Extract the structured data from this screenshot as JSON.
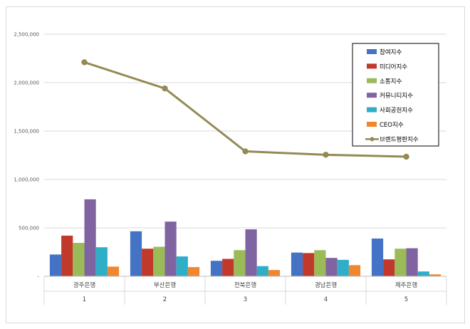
{
  "chart_data": {
    "type": "bar",
    "y_ticks": [
      "2,500,000",
      "2,000,000",
      "1,500,000",
      "1,000,000",
      "500,000",
      "-"
    ],
    "ylim": [
      0,
      2500000
    ],
    "grid": true,
    "legend_position": "top-right",
    "categories": [
      "광주은행",
      "부산은행",
      "전북은행",
      "경남은행",
      "제주은행"
    ],
    "category_index": [
      "1",
      "2",
      "3",
      "4",
      "5"
    ],
    "series": [
      {
        "name": "참여지수",
        "color": "#4472c4",
        "values": [
          225000,
          465000,
          160000,
          245000,
          390000
        ]
      },
      {
        "name": "미디어지수",
        "color": "#c0392b",
        "values": [
          420000,
          285000,
          180000,
          240000,
          175000
        ]
      },
      {
        "name": "소통지수",
        "color": "#9bbb59",
        "values": [
          345000,
          305000,
          270000,
          270000,
          285000
        ]
      },
      {
        "name": "커뮤니티지수",
        "color": "#8064a2",
        "values": [
          795000,
          565000,
          485000,
          190000,
          290000
        ]
      },
      {
        "name": "사회공헌지수",
        "color": "#2eaec7",
        "values": [
          300000,
          205000,
          105000,
          170000,
          50000
        ]
      },
      {
        "name": "CEO지수",
        "color": "#f0862f",
        "values": [
          100000,
          95000,
          65000,
          115000,
          20000
        ]
      }
    ],
    "line_series": {
      "name": "브랜드평판지수",
      "color": "#948a54",
      "values": [
        2210000,
        1940000,
        1290000,
        1255000,
        1235000
      ]
    }
  }
}
